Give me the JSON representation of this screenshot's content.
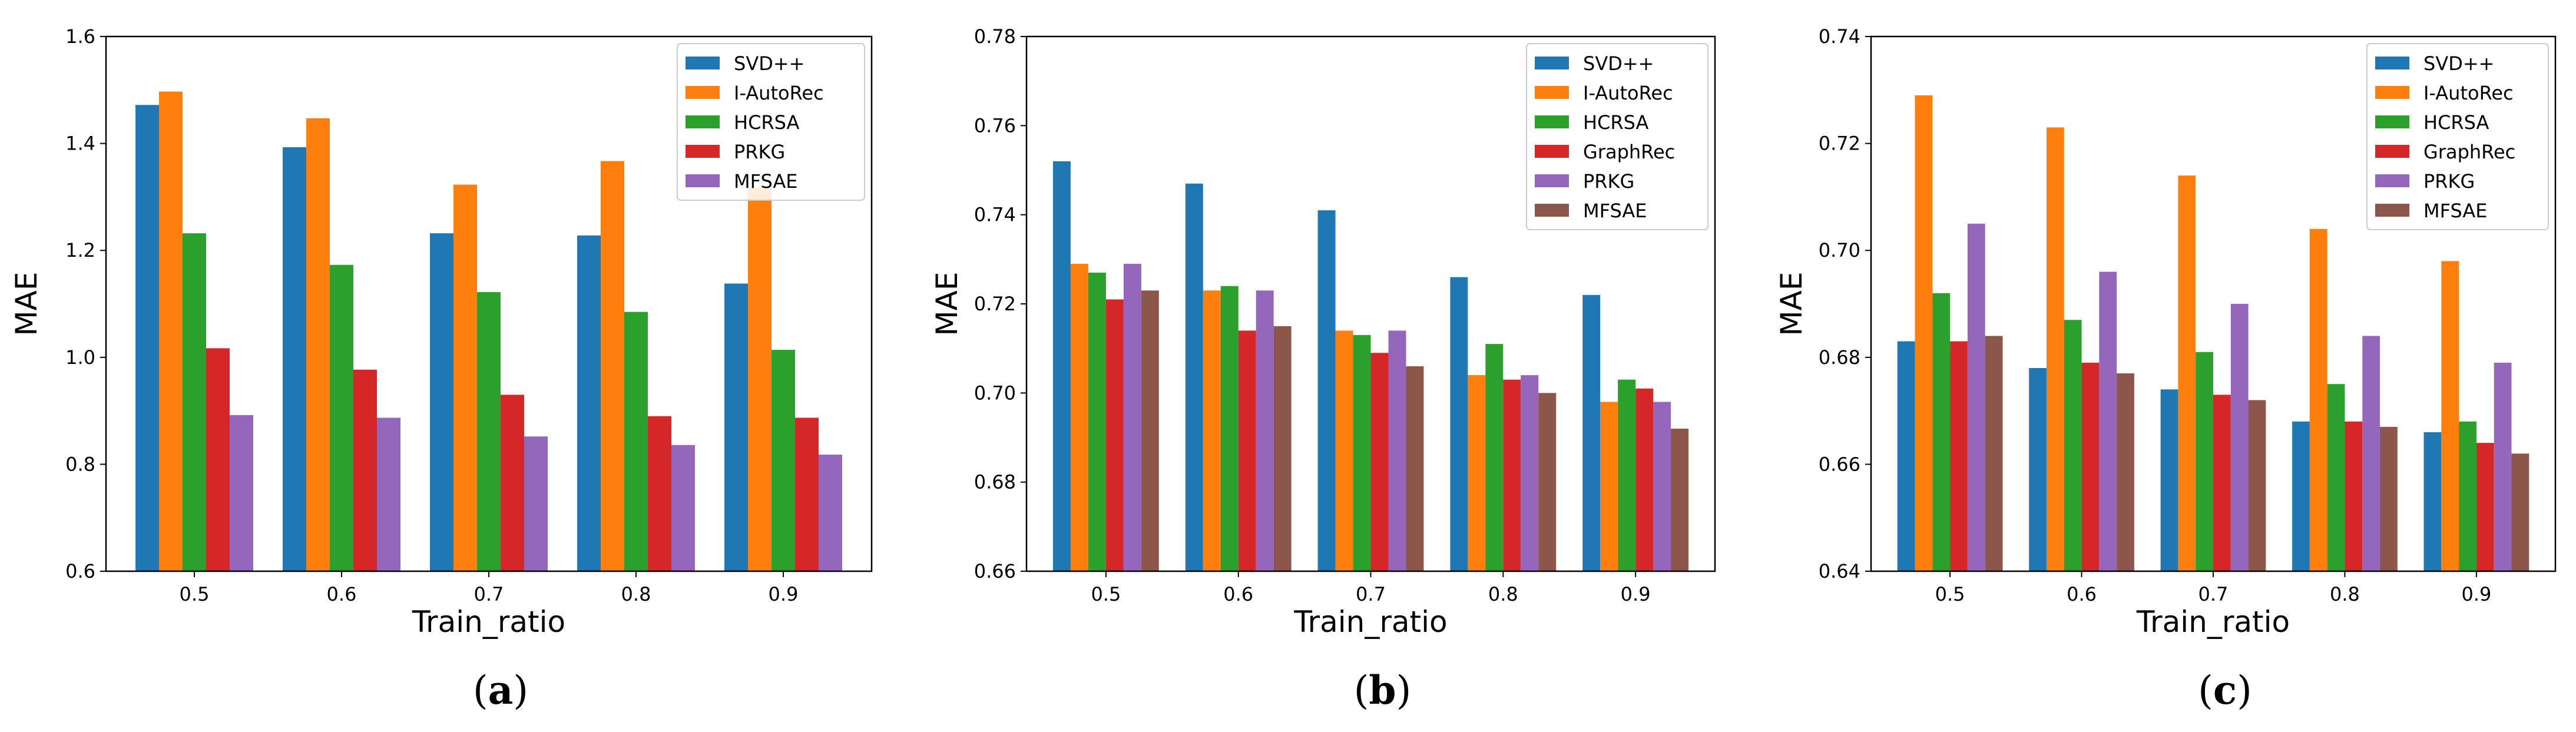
{
  "colors": {
    "SVD++": "#1f77b4",
    "I-AutoRec": "#ff7f0e",
    "HCRSA": "#2ca02c",
    "PRKG": "#9467bd",
    "GraphRec": "#d62728",
    "MFSAE": "#8c564b"
  },
  "chart_data": [
    {
      "id": "a",
      "type": "bar",
      "panel_label": "a",
      "xlabel": "Train_ratio",
      "ylabel": "MAE",
      "categories": [
        "0.5",
        "0.6",
        "0.7",
        "0.8",
        "0.9"
      ],
      "ylim": [
        0.6,
        1.6
      ],
      "yticks": [
        "0.6",
        "0.8",
        "1.0",
        "1.2",
        "1.4",
        "1.6"
      ],
      "legend_position": "top-right",
      "series": [
        {
          "name": "SVD++",
          "color": "#1f77b4",
          "values": [
            1.472,
            1.393,
            1.232,
            1.228,
            1.138
          ]
        },
        {
          "name": "I-AutoRec",
          "color": "#ff7f0e",
          "values": [
            1.497,
            1.447,
            1.323,
            1.367,
            1.318
          ]
        },
        {
          "name": "HCRSA",
          "color": "#2ca02c",
          "values": [
            1.232,
            1.173,
            1.122,
            1.085,
            1.014
          ]
        },
        {
          "name": "PRKG",
          "color": "#d62728",
          "values": [
            1.017,
            0.977,
            0.93,
            0.89,
            0.887
          ]
        },
        {
          "name": "MFSAE",
          "color": "#9467bd",
          "values": [
            0.892,
            0.887,
            0.852,
            0.836,
            0.818
          ]
        }
      ]
    },
    {
      "id": "b",
      "type": "bar",
      "panel_label": "b",
      "xlabel": "Train_ratio",
      "ylabel": "MAE",
      "categories": [
        "0.5",
        "0.6",
        "0.7",
        "0.8",
        "0.9"
      ],
      "ylim": [
        0.66,
        0.78
      ],
      "yticks": [
        "0.66",
        "0.68",
        "0.70",
        "0.72",
        "0.74",
        "0.76",
        "0.78"
      ],
      "legend_position": "top-right",
      "series": [
        {
          "name": "SVD++",
          "color": "#1f77b4",
          "values": [
            0.752,
            0.747,
            0.741,
            0.726,
            0.722
          ]
        },
        {
          "name": "I-AutoRec",
          "color": "#ff7f0e",
          "values": [
            0.729,
            0.723,
            0.714,
            0.704,
            0.698
          ]
        },
        {
          "name": "HCRSA",
          "color": "#2ca02c",
          "values": [
            0.727,
            0.724,
            0.713,
            0.711,
            0.703
          ]
        },
        {
          "name": "GraphRec",
          "color": "#d62728",
          "values": [
            0.721,
            0.714,
            0.709,
            0.703,
            0.701
          ]
        },
        {
          "name": "PRKG",
          "color": "#9467bd",
          "values": [
            0.729,
            0.723,
            0.714,
            0.704,
            0.698
          ]
        },
        {
          "name": "MFSAE",
          "color": "#8c564b",
          "values": [
            0.723,
            0.715,
            0.706,
            0.7,
            0.692
          ]
        }
      ]
    },
    {
      "id": "c",
      "type": "bar",
      "panel_label": "c",
      "xlabel": "Train_ratio",
      "ylabel": "MAE",
      "categories": [
        "0.5",
        "0.6",
        "0.7",
        "0.8",
        "0.9"
      ],
      "ylim": [
        0.64,
        0.74
      ],
      "yticks": [
        "0.64",
        "0.66",
        "0.68",
        "0.70",
        "0.72",
        "0.74"
      ],
      "legend_position": "top-right",
      "series": [
        {
          "name": "SVD++",
          "color": "#1f77b4",
          "values": [
            0.683,
            0.678,
            0.674,
            0.668,
            0.666
          ]
        },
        {
          "name": "I-AutoRec",
          "color": "#ff7f0e",
          "values": [
            0.729,
            0.723,
            0.714,
            0.704,
            0.698
          ]
        },
        {
          "name": "HCRSA",
          "color": "#2ca02c",
          "values": [
            0.692,
            0.687,
            0.681,
            0.675,
            0.668
          ]
        },
        {
          "name": "GraphRec",
          "color": "#d62728",
          "values": [
            0.683,
            0.679,
            0.673,
            0.668,
            0.664
          ]
        },
        {
          "name": "PRKG",
          "color": "#9467bd",
          "values": [
            0.705,
            0.696,
            0.69,
            0.684,
            0.679
          ]
        },
        {
          "name": "MFSAE",
          "color": "#8c564b",
          "values": [
            0.684,
            0.677,
            0.672,
            0.667,
            0.662
          ]
        }
      ]
    }
  ]
}
